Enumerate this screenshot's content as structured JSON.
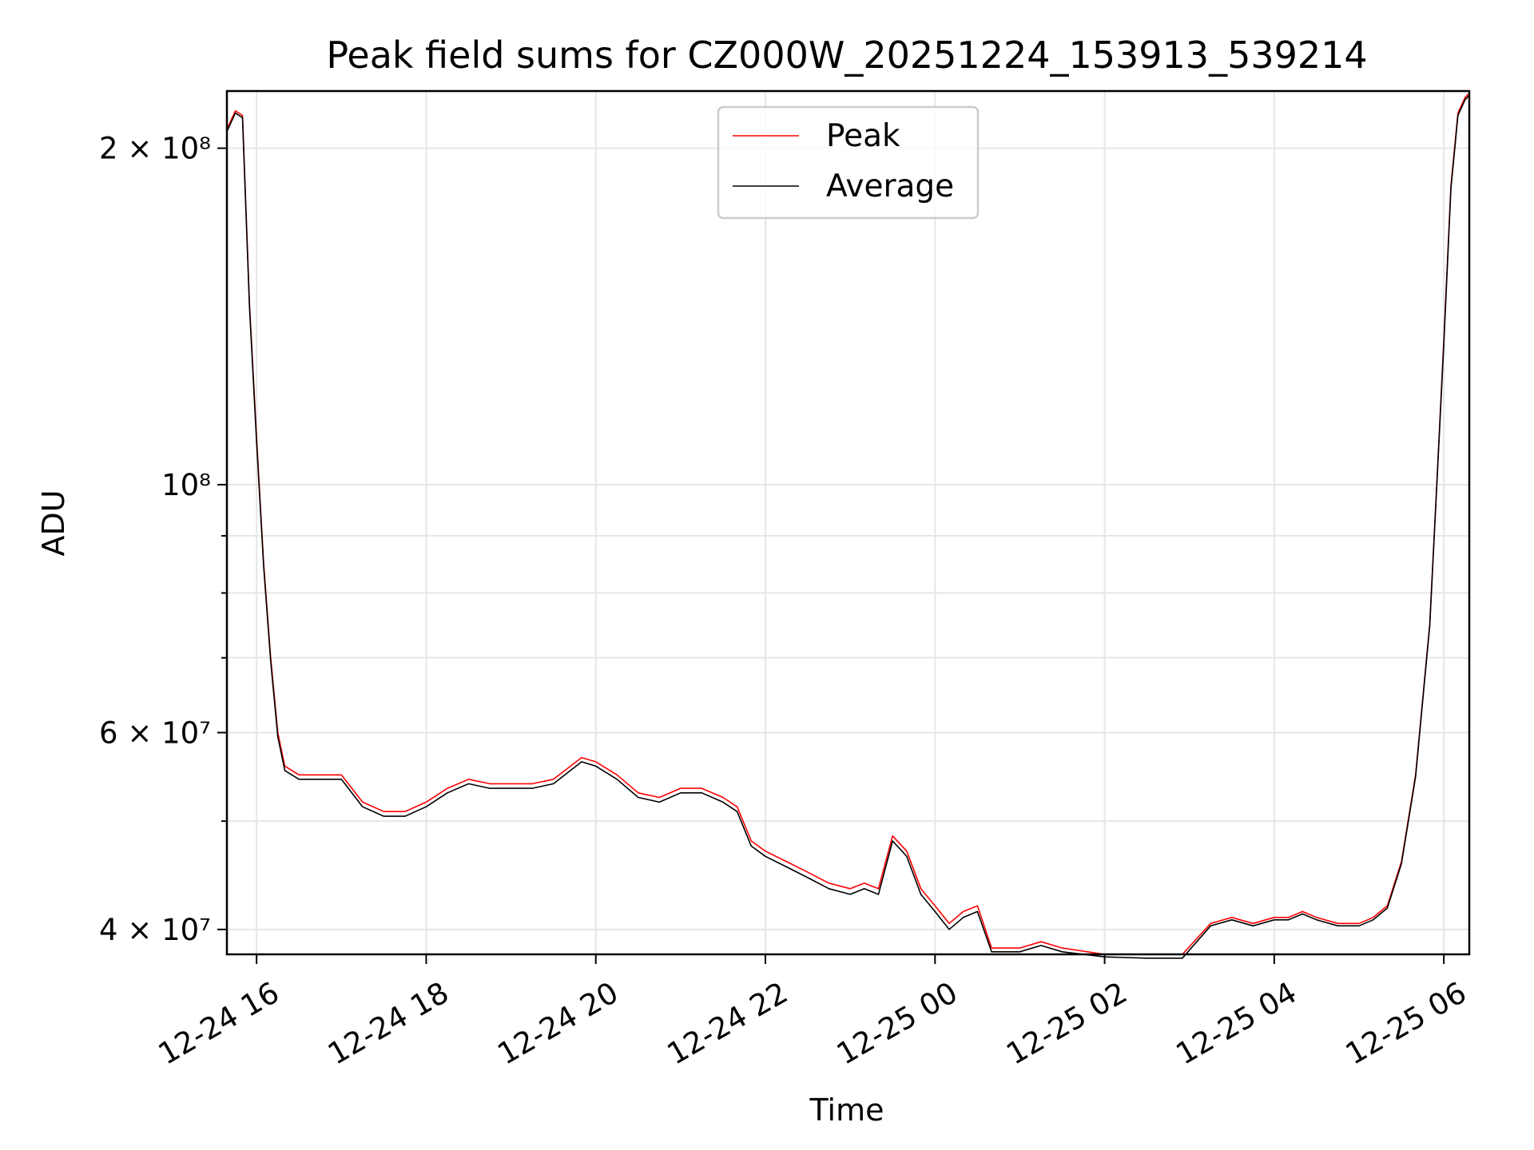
{
  "chart_data": {
    "type": "line",
    "title": "Peak field sums for CZ000W_20251224_153913_539214",
    "xlabel": "Time",
    "ylabel": "ADU",
    "yscale": "log",
    "xlim": [
      "2025-12-24 15:39",
      "2025-12-25 06:18"
    ],
    "ylim": [
      38000000,
      225000000
    ],
    "grid": true,
    "legend_position": "upper center",
    "x_ticks": [
      "12-24 16",
      "12-24 18",
      "12-24 20",
      "12-24 22",
      "12-25 00",
      "12-25 02",
      "12-25 04",
      "12-25 06"
    ],
    "x_tick_times": [
      "2025-12-24 16:00",
      "2025-12-24 18:00",
      "2025-12-24 20:00",
      "2025-12-24 22:00",
      "2025-12-25 00:00",
      "2025-12-25 02:00",
      "2025-12-25 04:00",
      "2025-12-25 06:00"
    ],
    "y_ticks": [
      {
        "value": 40000000,
        "label": "4 × 10⁷"
      },
      {
        "value": 60000000,
        "label": "6 × 10⁷"
      },
      {
        "value": 100000000,
        "label": "10⁸"
      },
      {
        "value": 200000000,
        "label": "2 × 10⁸"
      }
    ],
    "y_minor_grid": [
      50000000,
      70000000,
      80000000,
      90000000
    ],
    "series": [
      {
        "name": "Peak",
        "color": "#ff0000",
        "x": [
          "2025-12-24 15:39",
          "2025-12-24 15:45",
          "2025-12-24 15:50",
          "2025-12-24 15:55",
          "2025-12-24 16:00",
          "2025-12-24 16:05",
          "2025-12-24 16:10",
          "2025-12-24 16:15",
          "2025-12-24 16:20",
          "2025-12-24 16:30",
          "2025-12-24 16:45",
          "2025-12-24 17:00",
          "2025-12-24 17:15",
          "2025-12-24 17:30",
          "2025-12-24 17:45",
          "2025-12-24 18:00",
          "2025-12-24 18:15",
          "2025-12-24 18:30",
          "2025-12-24 18:45",
          "2025-12-24 19:00",
          "2025-12-24 19:15",
          "2025-12-24 19:30",
          "2025-12-24 19:50",
          "2025-12-24 20:00",
          "2025-12-24 20:15",
          "2025-12-24 20:30",
          "2025-12-24 20:45",
          "2025-12-24 21:00",
          "2025-12-24 21:15",
          "2025-12-24 21:30",
          "2025-12-24 21:40",
          "2025-12-24 21:50",
          "2025-12-24 22:00",
          "2025-12-24 22:15",
          "2025-12-24 22:30",
          "2025-12-24 22:45",
          "2025-12-24 23:00",
          "2025-12-24 23:10",
          "2025-12-24 23:20",
          "2025-12-24 23:30",
          "2025-12-24 23:40",
          "2025-12-24 23:50",
          "2025-12-25 00:00",
          "2025-12-25 00:10",
          "2025-12-25 00:20",
          "2025-12-25 00:30",
          "2025-12-25 00:40",
          "2025-12-25 01:00",
          "2025-12-25 01:15",
          "2025-12-25 01:30",
          "2025-12-25 02:00",
          "2025-12-25 02:30",
          "2025-12-25 02:50",
          "2025-12-25 02:55",
          "2025-12-25 03:15",
          "2025-12-25 03:30",
          "2025-12-25 03:45",
          "2025-12-25 04:00",
          "2025-12-25 04:10",
          "2025-12-25 04:20",
          "2025-12-25 04:30",
          "2025-12-25 04:45",
          "2025-12-25 05:00",
          "2025-12-25 05:10",
          "2025-12-25 05:20",
          "2025-12-25 05:30",
          "2025-12-25 05:40",
          "2025-12-25 05:50",
          "2025-12-25 05:55",
          "2025-12-25 06:00",
          "2025-12-25 06:05",
          "2025-12-25 06:10",
          "2025-12-25 06:15",
          "2025-12-25 06:18"
        ],
        "y": [
          208000000,
          216000000,
          214000000,
          145000000,
          110000000,
          85000000,
          70000000,
          60000000,
          56000000,
          55000000,
          55000000,
          55000000,
          52000000,
          51000000,
          51000000,
          52000000,
          53500000,
          54500000,
          54000000,
          54000000,
          54000000,
          54500000,
          57000000,
          56500000,
          55000000,
          53000000,
          52500000,
          53500000,
          53500000,
          52500000,
          51500000,
          48000000,
          47000000,
          46000000,
          45000000,
          44000000,
          43500000,
          44000000,
          43500000,
          48500000,
          47000000,
          43500000,
          42000000,
          40500000,
          41500000,
          42000000,
          38500000,
          38500000,
          39000000,
          38500000,
          38000000,
          38000000,
          38000000,
          38000000,
          40500000,
          41000000,
          40500000,
          41000000,
          41000000,
          41500000,
          41000000,
          40500000,
          40500000,
          41000000,
          42000000,
          46000000,
          55000000,
          75000000,
          100000000,
          135000000,
          185000000,
          215000000,
          222000000,
          224000000
        ]
      },
      {
        "name": "Average",
        "color": "#000000",
        "x": [
          "2025-12-24 15:39",
          "2025-12-24 15:45",
          "2025-12-24 15:50",
          "2025-12-24 15:55",
          "2025-12-24 16:00",
          "2025-12-24 16:05",
          "2025-12-24 16:10",
          "2025-12-24 16:15",
          "2025-12-24 16:20",
          "2025-12-24 16:30",
          "2025-12-24 16:45",
          "2025-12-24 17:00",
          "2025-12-24 17:15",
          "2025-12-24 17:30",
          "2025-12-24 17:45",
          "2025-12-24 18:00",
          "2025-12-24 18:15",
          "2025-12-24 18:30",
          "2025-12-24 18:45",
          "2025-12-24 19:00",
          "2025-12-24 19:15",
          "2025-12-24 19:30",
          "2025-12-24 19:50",
          "2025-12-24 20:00",
          "2025-12-24 20:15",
          "2025-12-24 20:30",
          "2025-12-24 20:45",
          "2025-12-24 21:00",
          "2025-12-24 21:15",
          "2025-12-24 21:30",
          "2025-12-24 21:40",
          "2025-12-24 21:50",
          "2025-12-24 22:00",
          "2025-12-24 22:15",
          "2025-12-24 22:30",
          "2025-12-24 22:45",
          "2025-12-24 23:00",
          "2025-12-24 23:10",
          "2025-12-24 23:20",
          "2025-12-24 23:30",
          "2025-12-24 23:40",
          "2025-12-24 23:50",
          "2025-12-25 00:00",
          "2025-12-25 00:10",
          "2025-12-25 00:20",
          "2025-12-25 00:30",
          "2025-12-25 00:40",
          "2025-12-25 01:00",
          "2025-12-25 01:15",
          "2025-12-25 01:30",
          "2025-12-25 02:00",
          "2025-12-25 02:30",
          "2025-12-25 02:50",
          "2025-12-25 02:55",
          "2025-12-25 03:15",
          "2025-12-25 03:30",
          "2025-12-25 03:45",
          "2025-12-25 04:00",
          "2025-12-25 04:10",
          "2025-12-25 04:20",
          "2025-12-25 04:30",
          "2025-12-25 04:45",
          "2025-12-25 05:00",
          "2025-12-25 05:10",
          "2025-12-25 05:20",
          "2025-12-25 05:30",
          "2025-12-25 05:40",
          "2025-12-25 05:50",
          "2025-12-25 05:55",
          "2025-12-25 06:00",
          "2025-12-25 06:05",
          "2025-12-25 06:10",
          "2025-12-25 06:15",
          "2025-12-25 06:18"
        ],
        "y": [
          207000000,
          215000000,
          213000000,
          144000000,
          109000000,
          84500000,
          69500000,
          59500000,
          55500000,
          54500000,
          54500000,
          54500000,
          51500000,
          50500000,
          50500000,
          51500000,
          53000000,
          54000000,
          53500000,
          53500000,
          53500000,
          54000000,
          56500000,
          56000000,
          54500000,
          52500000,
          52000000,
          53000000,
          53000000,
          52000000,
          51000000,
          47500000,
          46500000,
          45500000,
          44500000,
          43500000,
          43000000,
          43500000,
          43000000,
          48000000,
          46500000,
          43000000,
          41500000,
          40000000,
          41000000,
          41500000,
          38200000,
          38200000,
          38700000,
          38200000,
          37800000,
          37700000,
          37700000,
          37700000,
          40300000,
          40800000,
          40300000,
          40800000,
          40800000,
          41300000,
          40800000,
          40300000,
          40300000,
          40800000,
          41800000,
          45800000,
          54800000,
          74800000,
          99800000,
          134000000,
          184000000,
          214000000,
          221000000,
          223000000
        ]
      }
    ]
  }
}
